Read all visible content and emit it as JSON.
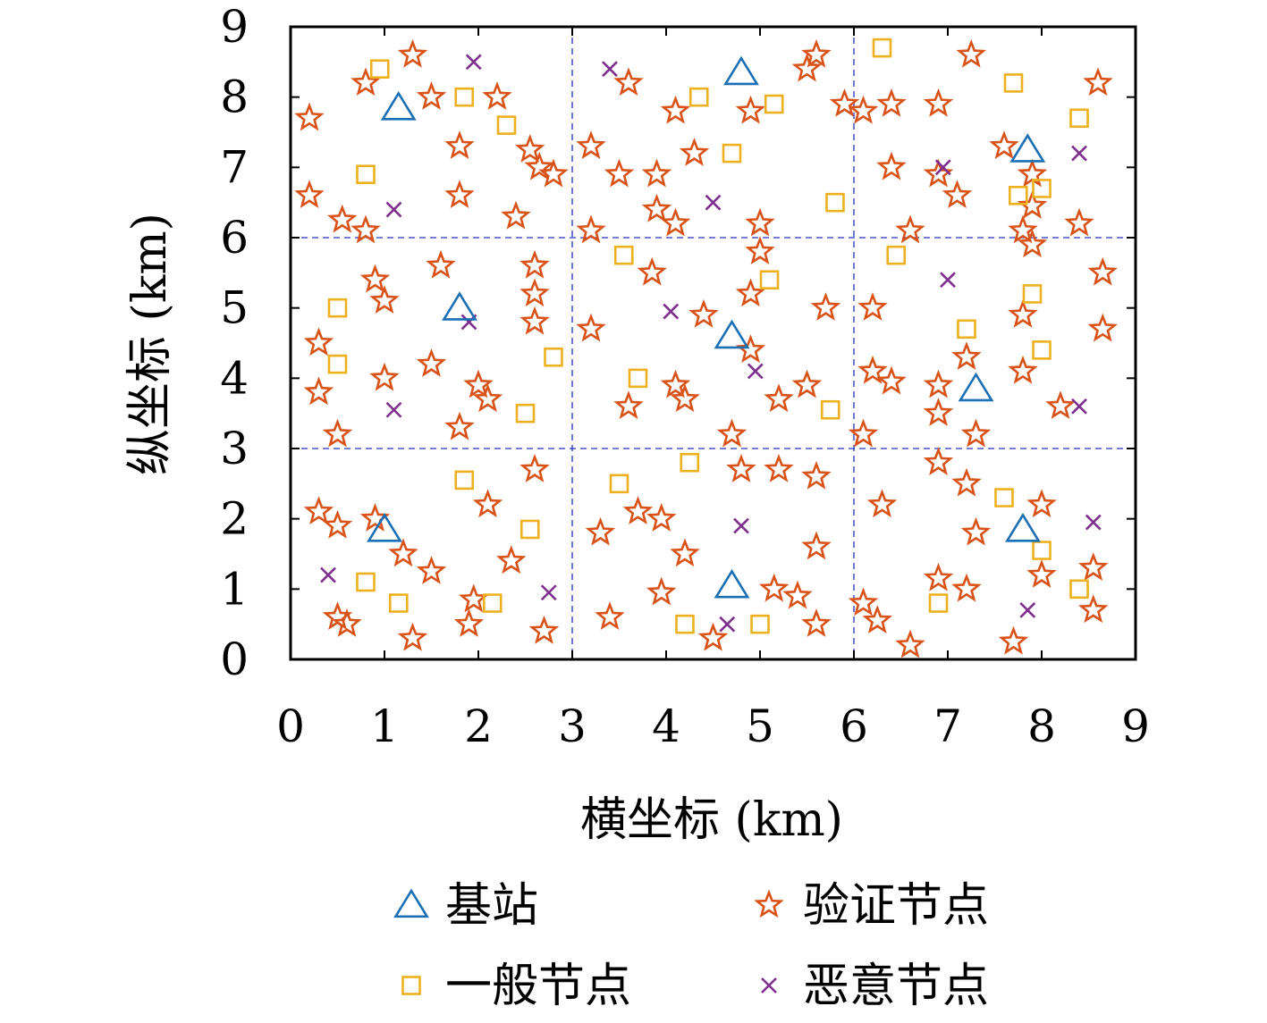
{
  "chart_data": {
    "type": "scatter",
    "xlabel": "横坐标 (km)",
    "ylabel": "纵坐标 (km)",
    "xlim": [
      0,
      9
    ],
    "ylim": [
      0,
      9
    ],
    "xticks": [
      "0",
      "1",
      "2",
      "3",
      "4",
      "5",
      "6",
      "7",
      "8",
      "9"
    ],
    "yticks": [
      "0",
      "1",
      "2",
      "3",
      "4",
      "5",
      "6",
      "7",
      "8",
      "9"
    ],
    "grid_lines": [
      3,
      6
    ],
    "legend_position": "bottom",
    "series": [
      {
        "name": "基站",
        "marker": "triangle",
        "color": "#1a6fb5",
        "points": [
          [
            1.15,
            7.85
          ],
          [
            4.8,
            8.35
          ],
          [
            7.85,
            7.25
          ],
          [
            1.8,
            5.0
          ],
          [
            4.7,
            4.6
          ],
          [
            7.3,
            3.85
          ],
          [
            1.0,
            1.85
          ],
          [
            4.7,
            1.05
          ],
          [
            7.8,
            1.85
          ]
        ]
      },
      {
        "name": "验证节点",
        "marker": "star",
        "color": "#d95319",
        "points": [
          [
            1.3,
            8.6
          ],
          [
            1.5,
            8.0
          ],
          [
            0.8,
            8.2
          ],
          [
            0.2,
            7.7
          ],
          [
            2.2,
            8.0
          ],
          [
            1.8,
            7.3
          ],
          [
            1.8,
            6.6
          ],
          [
            0.2,
            6.6
          ],
          [
            0.55,
            6.25
          ],
          [
            0.8,
            6.1
          ],
          [
            2.55,
            7.25
          ],
          [
            2.65,
            7.0
          ],
          [
            2.8,
            6.9
          ],
          [
            2.4,
            6.3
          ],
          [
            3.6,
            8.2
          ],
          [
            3.2,
            7.3
          ],
          [
            3.5,
            6.9
          ],
          [
            3.9,
            6.9
          ],
          [
            4.3,
            7.2
          ],
          [
            4.1,
            7.8
          ],
          [
            4.9,
            7.8
          ],
          [
            5.5,
            8.4
          ],
          [
            5.6,
            8.6
          ],
          [
            5.9,
            7.9
          ],
          [
            3.2,
            6.1
          ],
          [
            3.9,
            6.4
          ],
          [
            4.1,
            6.2
          ],
          [
            5.0,
            6.2
          ],
          [
            3.85,
            5.5
          ],
          [
            5.0,
            5.8
          ],
          [
            4.4,
            4.9
          ],
          [
            4.9,
            5.2
          ],
          [
            5.7,
            5.0
          ],
          [
            3.2,
            4.7
          ],
          [
            4.9,
            4.4
          ],
          [
            4.1,
            3.9
          ],
          [
            4.2,
            3.7
          ],
          [
            5.2,
            3.7
          ],
          [
            5.5,
            3.9
          ],
          [
            3.6,
            3.6
          ],
          [
            4.7,
            3.2
          ],
          [
            4.8,
            2.7
          ],
          [
            5.2,
            2.7
          ],
          [
            5.6,
            2.6
          ],
          [
            3.7,
            2.1
          ],
          [
            3.95,
            2.0
          ],
          [
            3.3,
            1.8
          ],
          [
            4.2,
            1.5
          ],
          [
            5.6,
            1.6
          ],
          [
            3.95,
            0.95
          ],
          [
            5.15,
            1.0
          ],
          [
            5.4,
            0.9
          ],
          [
            3.4,
            0.6
          ],
          [
            4.5,
            0.3
          ],
          [
            5.6,
            0.5
          ],
          [
            1.6,
            5.6
          ],
          [
            0.9,
            5.4
          ],
          [
            1.0,
            5.1
          ],
          [
            2.6,
            5.6
          ],
          [
            2.6,
            5.2
          ],
          [
            2.6,
            4.8
          ],
          [
            0.3,
            4.5
          ],
          [
            1.5,
            4.2
          ],
          [
            1.0,
            4.0
          ],
          [
            0.3,
            3.8
          ],
          [
            2.0,
            3.9
          ],
          [
            2.1,
            3.7
          ],
          [
            0.5,
            3.2
          ],
          [
            1.8,
            3.3
          ],
          [
            2.6,
            2.7
          ],
          [
            0.3,
            2.1
          ],
          [
            0.5,
            1.9
          ],
          [
            0.9,
            2.0
          ],
          [
            2.1,
            2.2
          ],
          [
            1.2,
            1.5
          ],
          [
            1.5,
            1.25
          ],
          [
            2.35,
            1.4
          ],
          [
            0.5,
            0.6
          ],
          [
            0.6,
            0.5
          ],
          [
            1.3,
            0.3
          ],
          [
            1.95,
            0.85
          ],
          [
            1.9,
            0.5
          ],
          [
            2.7,
            0.4
          ],
          [
            6.1,
            7.8
          ],
          [
            6.4,
            7.9
          ],
          [
            6.9,
            7.9
          ],
          [
            7.25,
            8.6
          ],
          [
            6.4,
            7.0
          ],
          [
            6.9,
            6.9
          ],
          [
            7.1,
            6.6
          ],
          [
            6.6,
            6.1
          ],
          [
            7.6,
            7.3
          ],
          [
            7.9,
            6.9
          ],
          [
            7.9,
            6.45
          ],
          [
            7.8,
            6.1
          ],
          [
            7.9,
            5.9
          ],
          [
            8.4,
            6.2
          ],
          [
            8.6,
            8.2
          ],
          [
            8.65,
            5.5
          ],
          [
            8.65,
            4.7
          ],
          [
            6.2,
            5.0
          ],
          [
            6.2,
            4.1
          ],
          [
            6.4,
            3.95
          ],
          [
            6.1,
            3.2
          ],
          [
            6.9,
            3.9
          ],
          [
            6.9,
            3.5
          ],
          [
            7.2,
            4.3
          ],
          [
            7.3,
            3.2
          ],
          [
            7.8,
            4.9
          ],
          [
            7.8,
            4.1
          ],
          [
            8.2,
            3.6
          ],
          [
            6.9,
            2.8
          ],
          [
            7.2,
            2.5
          ],
          [
            6.3,
            2.2
          ],
          [
            7.3,
            1.8
          ],
          [
            8.0,
            2.2
          ],
          [
            6.9,
            1.15
          ],
          [
            7.2,
            1.0
          ],
          [
            8.0,
            1.2
          ],
          [
            6.1,
            0.8
          ],
          [
            6.25,
            0.55
          ],
          [
            6.6,
            0.2
          ],
          [
            7.7,
            0.25
          ],
          [
            8.55,
            1.3
          ],
          [
            8.55,
            0.7
          ]
        ]
      },
      {
        "name": "一般节点",
        "marker": "square",
        "color": "#edb120",
        "points": [
          [
            0.95,
            8.4
          ],
          [
            1.85,
            8.0
          ],
          [
            2.3,
            7.6
          ],
          [
            0.8,
            6.9
          ],
          [
            6.3,
            8.7
          ],
          [
            7.7,
            8.2
          ],
          [
            8.4,
            7.7
          ],
          [
            4.35,
            8.0
          ],
          [
            4.7,
            7.2
          ],
          [
            5.15,
            7.9
          ],
          [
            5.8,
            6.5
          ],
          [
            7.75,
            6.6
          ],
          [
            8.0,
            6.7
          ],
          [
            3.55,
            5.75
          ],
          [
            5.1,
            5.4
          ],
          [
            6.45,
            5.75
          ],
          [
            7.9,
            5.2
          ],
          [
            0.5,
            5.0
          ],
          [
            0.5,
            4.2
          ],
          [
            2.8,
            4.3
          ],
          [
            3.7,
            4.0
          ],
          [
            5.75,
            3.55
          ],
          [
            7.2,
            4.7
          ],
          [
            8.0,
            4.4
          ],
          [
            2.5,
            3.5
          ],
          [
            1.85,
            2.55
          ],
          [
            2.55,
            1.85
          ],
          [
            4.25,
            2.8
          ],
          [
            3.5,
            2.5
          ],
          [
            7.6,
            2.3
          ],
          [
            8.0,
            1.55
          ],
          [
            8.4,
            1.0
          ],
          [
            0.8,
            1.1
          ],
          [
            1.15,
            0.8
          ],
          [
            2.15,
            0.8
          ],
          [
            4.2,
            0.5
          ],
          [
            5.0,
            0.5
          ],
          [
            6.9,
            0.8
          ]
        ]
      },
      {
        "name": "恶意节点",
        "marker": "x",
        "color": "#7e2f8e",
        "points": [
          [
            1.95,
            8.5
          ],
          [
            3.4,
            8.4
          ],
          [
            4.5,
            6.5
          ],
          [
            1.1,
            6.4
          ],
          [
            6.95,
            7.0
          ],
          [
            8.4,
            7.2
          ],
          [
            1.9,
            4.8
          ],
          [
            4.05,
            4.95
          ],
          [
            4.95,
            4.1
          ],
          [
            7.0,
            5.4
          ],
          [
            1.1,
            3.55
          ],
          [
            8.4,
            3.6
          ],
          [
            4.8,
            1.9
          ],
          [
            8.55,
            1.95
          ],
          [
            0.4,
            1.2
          ],
          [
            2.75,
            0.95
          ],
          [
            4.65,
            0.5
          ],
          [
            7.85,
            0.7
          ]
        ]
      }
    ]
  }
}
